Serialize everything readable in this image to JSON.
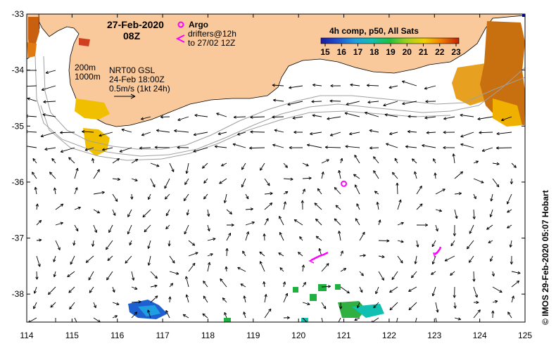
{
  "header": {
    "date": "27-Feb-2020",
    "time": "08Z"
  },
  "legend": {
    "argo_label": "Argo",
    "drifters_line1": "drifters@12h",
    "drifters_line2": "to 27/02 12Z",
    "colorbar_title": "4h comp, p50, All Sats",
    "colorbar_ticks": [
      "15",
      "16",
      "17",
      "18",
      "19",
      "20",
      "21",
      "22",
      "23"
    ],
    "colors": {
      "argo": "#ff00ff",
      "drifter": "#ff00ff",
      "land": "#f9c89b",
      "isobath": "#a0a0a0"
    }
  },
  "annotations": {
    "isobath_200": "200m",
    "isobath_1000": "1000m",
    "product": "NRT00 GSL",
    "product_time": "24-Feb 18:00Z",
    "scale_line1": "0.5m/s (1kt 24h)"
  },
  "axes": {
    "x_ticks": [
      "114",
      "115",
      "116",
      "117",
      "118",
      "119",
      "120",
      "121",
      "122",
      "123",
      "124",
      "125"
    ],
    "y_ticks": [
      "-33",
      "-34",
      "-35",
      "-36",
      "-37",
      "-38"
    ],
    "x_range": [
      114,
      125
    ],
    "y_range": [
      -38.5,
      -33
    ]
  },
  "credit": "© IMOS 29-Feb-2020 05:07 Hobart",
  "argo_float": {
    "lon": 121.0,
    "lat": -36.03
  },
  "drifters": [
    {
      "lon": 120.55,
      "lat": -37.35
    },
    {
      "lon": 123.05,
      "lat": -37.22
    }
  ]
}
